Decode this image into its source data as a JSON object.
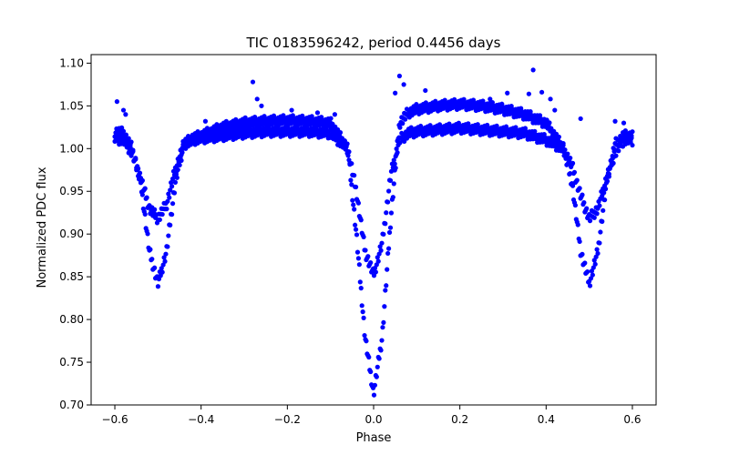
{
  "chart_data": {
    "type": "scatter",
    "title": "TIC 0183596242, period 0.4456 days",
    "xlabel": "Phase",
    "ylabel": "Normalized PDC flux",
    "xlim": [
      -0.655,
      0.655
    ],
    "ylim": [
      0.7,
      1.11
    ],
    "xticks": [
      -0.6,
      -0.4,
      -0.2,
      0.0,
      0.2,
      0.4,
      0.6
    ],
    "xtick_labels": [
      "−0.6",
      "−0.4",
      "−0.2",
      "0.0",
      "0.2",
      "0.4",
      "0.6"
    ],
    "yticks": [
      0.7,
      0.75,
      0.8,
      0.85,
      0.9,
      0.95,
      1.0,
      1.05,
      1.1
    ],
    "ytick_labels": [
      "0.70",
      "0.75",
      "0.80",
      "0.85",
      "0.90",
      "0.95",
      "1.00",
      "1.05",
      "1.10"
    ],
    "grid": false,
    "marker_color": "#0000ff",
    "series": [
      {
        "x": [
          -0.6,
          -0.58,
          -0.56,
          -0.54,
          -0.52,
          -0.5,
          -0.48,
          -0.46,
          -0.44,
          -0.42,
          -0.4,
          -0.35,
          -0.3,
          -0.25,
          -0.2,
          -0.15,
          -0.1,
          -0.06,
          -0.04,
          -0.02,
          0.0,
          0.02,
          0.04,
          0.06,
          0.08,
          0.1,
          0.15,
          0.2,
          0.25,
          0.3,
          0.35,
          0.4,
          0.44,
          0.46,
          0.48,
          0.5,
          0.52,
          0.54,
          0.56,
          0.58,
          0.6
        ],
        "y": [
          1.02,
          1.018,
          1.0,
          0.96,
          0.88,
          0.842,
          0.88,
          0.96,
          1.005,
          1.012,
          1.015,
          1.025,
          1.03,
          1.032,
          1.033,
          1.032,
          1.03,
          1.0,
          0.9,
          0.78,
          0.713,
          0.78,
          0.92,
          1.03,
          1.042,
          1.046,
          1.05,
          1.052,
          1.05,
          1.046,
          1.04,
          1.03,
          1.0,
          0.96,
          0.88,
          0.842,
          0.88,
          0.96,
          1.005,
          1.015,
          1.015
        ]
      },
      {
        "x": [
          -0.6,
          -0.58,
          -0.56,
          -0.54,
          -0.52,
          -0.5,
          -0.48,
          -0.46,
          -0.44,
          -0.42,
          -0.4,
          -0.35,
          -0.3,
          -0.25,
          -0.2,
          -0.15,
          -0.1,
          -0.06,
          -0.04,
          -0.02,
          0.0,
          0.02,
          0.04,
          0.06,
          0.08,
          0.1,
          0.15,
          0.2,
          0.25,
          0.3,
          0.35,
          0.4,
          0.44,
          0.46,
          0.48,
          0.5,
          0.52,
          0.54,
          0.56,
          0.58,
          0.6
        ],
        "y": [
          1.012,
          1.01,
          0.995,
          0.965,
          0.93,
          0.918,
          0.935,
          0.975,
          1.005,
          1.01,
          1.012,
          1.015,
          1.018,
          1.02,
          1.02,
          1.02,
          1.018,
          1.0,
          0.95,
          0.88,
          0.852,
          0.89,
          0.97,
          1.01,
          1.018,
          1.02,
          1.022,
          1.024,
          1.022,
          1.02,
          1.018,
          1.01,
          1.0,
          0.98,
          0.945,
          0.918,
          0.93,
          0.965,
          0.995,
          1.01,
          1.01
        ]
      }
    ],
    "outliers": {
      "x": [
        -0.595,
        -0.58,
        -0.575,
        -0.39,
        -0.28,
        -0.27,
        -0.26,
        -0.19,
        -0.13,
        -0.09,
        0.05,
        0.06,
        0.07,
        0.12,
        0.27,
        0.31,
        0.36,
        0.37,
        0.39,
        0.41,
        0.42,
        0.48,
        0.56,
        0.58
      ],
      "y": [
        1.055,
        1.045,
        1.04,
        1.032,
        1.078,
        1.058,
        1.05,
        1.045,
        1.042,
        1.04,
        1.065,
        1.085,
        1.075,
        1.068,
        1.058,
        1.065,
        1.064,
        1.092,
        1.066,
        1.058,
        1.045,
        1.035,
        1.032,
        1.03
      ]
    }
  }
}
